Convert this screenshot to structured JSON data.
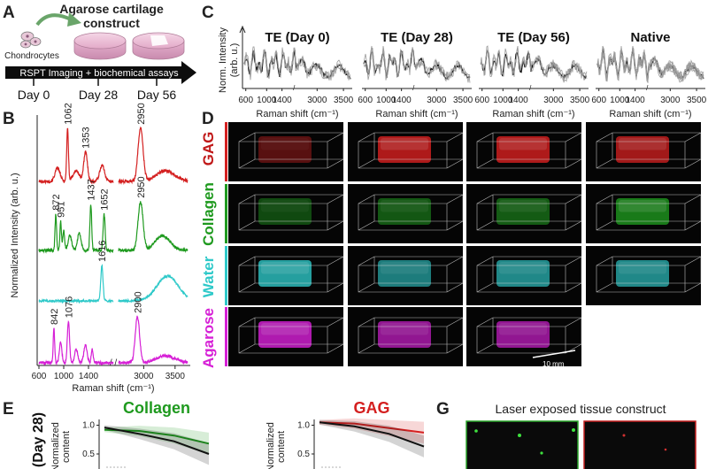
{
  "panels": {
    "A": {
      "label": "A",
      "title_line1": "Agarose cartilage",
      "title_line2": "construct",
      "cells_label": "Chondrocytes",
      "timeline_text": "RSPT Imaging + biochemical assays",
      "days": [
        "Day 0",
        "Day 28",
        "Day 56"
      ]
    },
    "B": {
      "label": "B"
    },
    "C": {
      "label": "C"
    },
    "D": {
      "label": "D",
      "scale_bar": "10 mm"
    },
    "E": {
      "label": "E"
    },
    "G": {
      "label": "G",
      "title": "Laser exposed tissue construct"
    }
  },
  "colors": {
    "gag": "#d42020",
    "collagen": "#1f9a1f",
    "water": "#2ec9c9",
    "agarose": "#d620d6",
    "ink": "#1a1a1a"
  },
  "chart_data": [
    {
      "id": "B",
      "type": "line",
      "xlabel": "Raman shift (cm⁻¹)",
      "ylabel": "Normalized Intensity (arb. u.)",
      "xticks": [
        "600",
        "1000",
        "1400",
        "3000",
        "3500"
      ],
      "x_segments": [
        [
          600,
          1800
        ],
        [
          2600,
          3700
        ]
      ],
      "series": [
        {
          "name": "GAG",
          "color": "#d42020",
          "peaks": [
            {
              "x": 1062,
              "label": "1062"
            },
            {
              "x": 1353,
              "label": "1353"
            },
            {
              "x": 2950,
              "label": "2950"
            }
          ]
        },
        {
          "name": "Collagen",
          "color": "#1f9a1f",
          "peaks": [
            {
              "x": 872,
              "label": "872"
            },
            {
              "x": 951,
              "label": "951"
            },
            {
              "x": 1437,
              "label": "1437"
            },
            {
              "x": 1652,
              "label": "1652"
            },
            {
              "x": 2950,
              "label": "2950"
            }
          ]
        },
        {
          "name": "Water",
          "color": "#2ec9c9",
          "peaks": [
            {
              "x": 1616,
              "label": "1616"
            }
          ]
        },
        {
          "name": "Agarose",
          "color": "#d620d6",
          "peaks": [
            {
              "x": 842,
              "label": "842"
            },
            {
              "x": 1076,
              "label": "1076"
            },
            {
              "x": 2900,
              "label": "2900"
            }
          ]
        }
      ]
    },
    {
      "id": "C",
      "type": "line",
      "ylabel_line1": "Norm. Intensity",
      "ylabel_line2": "(arb. u.)",
      "xlabel": "Raman shift (cm⁻¹)",
      "xticks": [
        "600",
        "1000",
        "1400",
        "3000",
        "3500"
      ],
      "subplots": [
        {
          "title": "TE (Day 0)"
        },
        {
          "title": "TE (Day 28)"
        },
        {
          "title": "TE (Day 56)"
        },
        {
          "title": "Native"
        }
      ]
    },
    {
      "id": "D",
      "type": "table",
      "rows": [
        "GAG",
        "Collagen",
        "Water",
        "Agarose"
      ],
      "columns": [
        "TE (Day 0)",
        "TE (Day 28)",
        "TE (Day 56)",
        "Native"
      ]
    },
    {
      "id": "E",
      "type": "line",
      "row_label": "(Day 28)",
      "ylabel_line1": "Normalized",
      "ylabel_line2": "content",
      "yticks": [
        "1.0",
        "0.5"
      ],
      "subplots": [
        {
          "title": "Collagen",
          "title_color": "#1f9a1f",
          "x": [
            0,
            1,
            2,
            3
          ],
          "series": [
            {
              "name": "green",
              "color": "#1f9a1f",
              "values": [
                0.92,
                0.9,
                0.82,
                0.68
              ]
            },
            {
              "name": "black",
              "color": "#111111",
              "values": [
                0.96,
                0.85,
                0.72,
                0.5
              ]
            }
          ]
        },
        {
          "title": "GAG",
          "title_color": "#d42020",
          "x": [
            0,
            1,
            2,
            3
          ],
          "series": [
            {
              "name": "red",
              "color": "#d42020",
              "values": [
                1.05,
                1.03,
                0.95,
                0.87
              ]
            },
            {
              "name": "black",
              "color": "#111111",
              "values": [
                1.05,
                0.98,
                0.85,
                0.63
              ]
            }
          ]
        }
      ]
    }
  ]
}
